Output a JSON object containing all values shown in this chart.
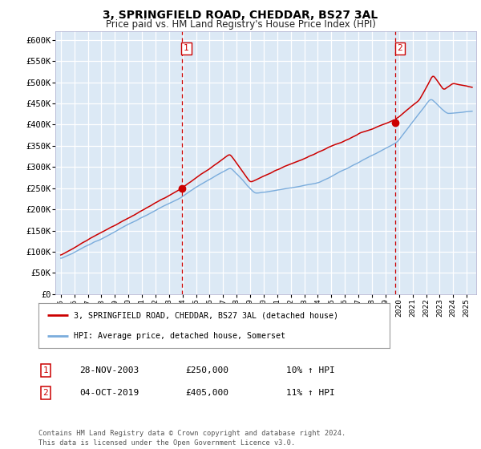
{
  "title1": "3, SPRINGFIELD ROAD, CHEDDAR, BS27 3AL",
  "title2": "Price paid vs. HM Land Registry's House Price Index (HPI)",
  "bg_color": "#dce9f5",
  "red_line_color": "#cc0000",
  "blue_line_color": "#7aacdc",
  "grid_color": "#ffffff",
  "vline_color": "#cc0000",
  "ylim": [
    0,
    620000
  ],
  "yticks": [
    0,
    50000,
    100000,
    150000,
    200000,
    250000,
    300000,
    350000,
    400000,
    450000,
    500000,
    550000,
    600000
  ],
  "ytick_labels": [
    "£0",
    "£50K",
    "£100K",
    "£150K",
    "£200K",
    "£250K",
    "£300K",
    "£350K",
    "£400K",
    "£450K",
    "£500K",
    "£550K",
    "£600K"
  ],
  "sale1_year": 2003.9,
  "sale1_price": 250000,
  "sale2_year": 2019.75,
  "sale2_price": 405000,
  "legend_label1": "3, SPRINGFIELD ROAD, CHEDDAR, BS27 3AL (detached house)",
  "legend_label2": "HPI: Average price, detached house, Somerset",
  "note1_box": "1",
  "note1_date": "28-NOV-2003",
  "note1_price": "£250,000",
  "note1_hpi": "10% ↑ HPI",
  "note2_box": "2",
  "note2_date": "04-OCT-2019",
  "note2_price": "£405,000",
  "note2_hpi": "11% ↑ HPI",
  "footer": "Contains HM Land Registry data © Crown copyright and database right 2024.\nThis data is licensed under the Open Government Licence v3.0.",
  "xtick_years": [
    1995,
    1996,
    1997,
    1998,
    1999,
    2000,
    2001,
    2002,
    2003,
    2004,
    2005,
    2006,
    2007,
    2008,
    2009,
    2010,
    2011,
    2012,
    2013,
    2014,
    2015,
    2016,
    2017,
    2018,
    2019,
    2020,
    2021,
    2022,
    2023,
    2024,
    2025
  ]
}
